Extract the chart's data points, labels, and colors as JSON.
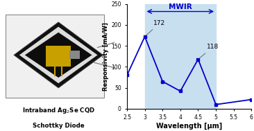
{
  "wavelengths": [
    2.5,
    3.0,
    3.5,
    4.0,
    4.5,
    5.0,
    6.0
  ],
  "responsivity": [
    80,
    172,
    65,
    42,
    118,
    10,
    22
  ],
  "mwir_start": 3.0,
  "mwir_end": 5.0,
  "mwir_label": "MWIR",
  "xlim": [
    2.5,
    6.0
  ],
  "ylim": [
    0,
    250
  ],
  "yticks": [
    0,
    50,
    100,
    150,
    200,
    250
  ],
  "xticks": [
    2.5,
    3.0,
    3.5,
    4.0,
    4.5,
    5.0,
    5.5,
    6.0
  ],
  "xticklabels": [
    "2.5",
    "3",
    "3.5",
    "4",
    "4.5",
    "5",
    "5.5",
    "6"
  ],
  "xlabel": "Wavelength [μm]",
  "ylabel": "Responsivity [mA/W]",
  "line_color": "#0000CC",
  "marker_style": "s",
  "marker_color": "#0000CC",
  "mwir_bg_color": "#c8dff0",
  "caption_line1": "Intraband Ag$_2$Se CQD",
  "caption_line2": "Schottky Diode",
  "photo_bg": "#c8c8c8",
  "photo_dark": "#1a1a1a",
  "photo_gold": "#c8a000"
}
